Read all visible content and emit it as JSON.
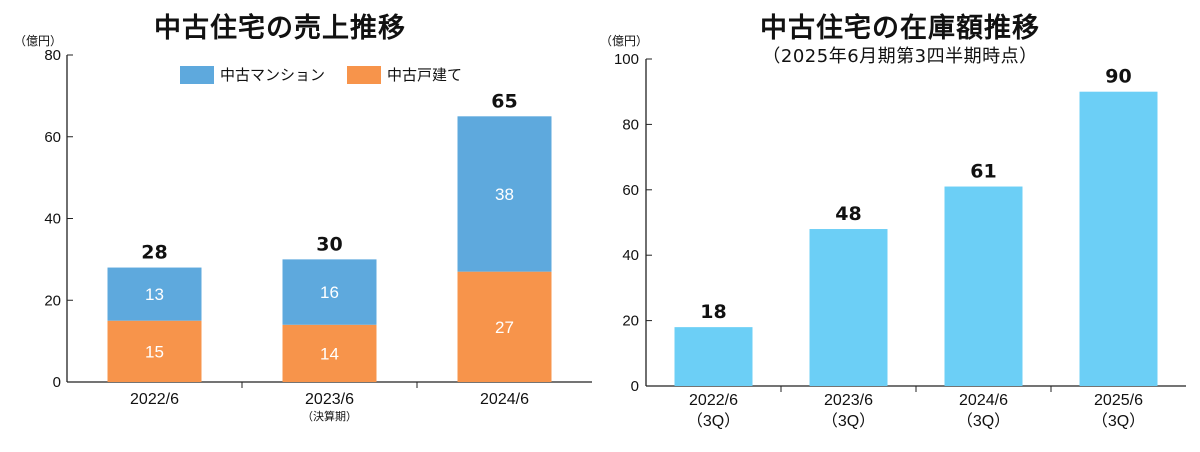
{
  "chart_data": [
    {
      "type": "bar",
      "stacked": true,
      "title": "中古住宅の売上推移",
      "unit_label": "（億円）",
      "categories": [
        "2022/6",
        "2023/6",
        "2024/6"
      ],
      "category_notes": [
        "",
        "（決算期）",
        ""
      ],
      "series": [
        {
          "name": "中古戸建て",
          "values": [
            15,
            14,
            27
          ],
          "color": "#f7944b"
        },
        {
          "name": "中古マンション",
          "values": [
            13,
            16,
            38
          ],
          "color": "#5ea9dd"
        }
      ],
      "totals": [
        28,
        30,
        65
      ],
      "ylim": [
        0,
        80
      ],
      "yticks": [
        0,
        20,
        40,
        60,
        80
      ],
      "legend_position": "top"
    },
    {
      "type": "bar",
      "title": "中古住宅の在庫額推移",
      "subtitle": "（2025年6月期第3四半期時点）",
      "unit_label": "（億円）",
      "categories": [
        "2022/6",
        "2023/6",
        "2024/6",
        "2025/6"
      ],
      "category_notes": [
        "（3Q）",
        "（3Q）",
        "（3Q）",
        "（3Q）"
      ],
      "values": [
        18,
        48,
        61,
        90
      ],
      "value_labels": [
        18,
        48,
        61,
        90
      ],
      "color": "#6ccff6",
      "ylim": [
        0,
        100
      ],
      "yticks": [
        0,
        20,
        40,
        60,
        80,
        100
      ]
    }
  ]
}
